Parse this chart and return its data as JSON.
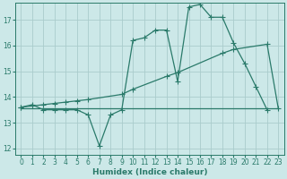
{
  "xlabel": "Humidex (Indice chaleur)",
  "bg_color": "#cce8e8",
  "grid_color": "#aacccc",
  "line_color": "#2a7a6a",
  "xlim": [
    -0.5,
    23.5
  ],
  "ylim": [
    11.75,
    17.65
  ],
  "yticks": [
    12,
    13,
    14,
    15,
    16,
    17
  ],
  "xticks": [
    0,
    1,
    2,
    3,
    4,
    5,
    6,
    7,
    8,
    9,
    10,
    11,
    12,
    13,
    14,
    15,
    16,
    17,
    18,
    19,
    20,
    21,
    22,
    23
  ],
  "line1_x": [
    0,
    1,
    2,
    3,
    4,
    5,
    6,
    7,
    8,
    9,
    10,
    11,
    12,
    13,
    14,
    15,
    16,
    17,
    18,
    19,
    20,
    21,
    22
  ],
  "line1_y": [
    13.6,
    13.7,
    13.5,
    13.5,
    13.5,
    13.5,
    13.3,
    12.1,
    13.3,
    13.5,
    16.2,
    16.3,
    16.6,
    16.6,
    14.6,
    17.5,
    17.6,
    17.1,
    17.1,
    16.1,
    15.3,
    14.4,
    13.5
  ],
  "line2_x": [
    0,
    23
  ],
  "line2_y": [
    13.55,
    13.55
  ],
  "line3_x": [
    0,
    1,
    2,
    3,
    4,
    5,
    6,
    9,
    10,
    13,
    14,
    18,
    19,
    22,
    23
  ],
  "line3_y": [
    13.6,
    13.65,
    13.7,
    13.75,
    13.8,
    13.85,
    13.9,
    14.1,
    14.3,
    14.8,
    14.95,
    15.7,
    15.85,
    16.05,
    13.55
  ],
  "markersize": 2.5
}
